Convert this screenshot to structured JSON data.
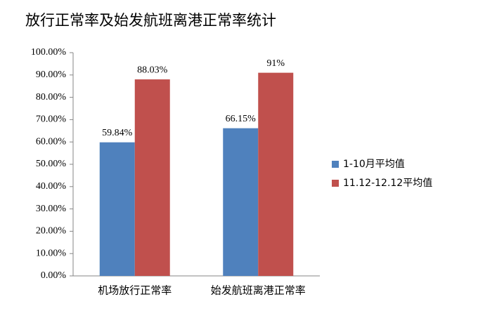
{
  "chart_data": {
    "type": "bar",
    "title": "放行正常率及始发航班离港正常率统计",
    "categories": [
      "机场放行正常率",
      "始发航班离港正常率"
    ],
    "series": [
      {
        "name": "1-10月平均值",
        "color": "#4f81bd",
        "values": [
          59.84,
          66.15
        ],
        "value_labels": [
          "59.84%",
          "66.15%"
        ]
      },
      {
        "name": "11.12-12.12平均值",
        "color": "#c0504d",
        "values": [
          88.03,
          91
        ],
        "value_labels": [
          "88.03%",
          "91%"
        ]
      }
    ],
    "ylim": [
      0,
      100
    ],
    "yticks": [
      {
        "value": 0,
        "label": "0.00%"
      },
      {
        "value": 10,
        "label": "10.00%"
      },
      {
        "value": 20,
        "label": "20.00%"
      },
      {
        "value": 30,
        "label": "30.00%"
      },
      {
        "value": 40,
        "label": "40.00%"
      },
      {
        "value": 50,
        "label": "50.00%"
      },
      {
        "value": 60,
        "label": "60.00%"
      },
      {
        "value": 70,
        "label": "70.00%"
      },
      {
        "value": 80,
        "label": "80.00%"
      },
      {
        "value": 90,
        "label": "90.00%"
      },
      {
        "value": 100,
        "label": "100.00%"
      }
    ],
    "grid": false,
    "legend": "right"
  }
}
